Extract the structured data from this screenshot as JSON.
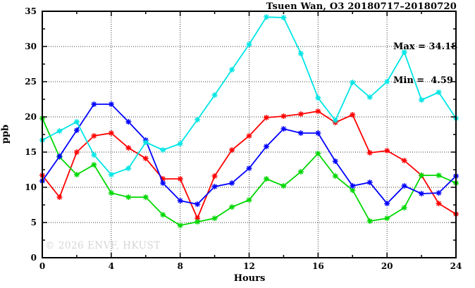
{
  "title": "Tsuen Wan, O3 20180717–20180720",
  "annotations": {
    "max_label": "Max = 34.18",
    "min_label": "Min =  4.59"
  },
  "watermark": "© 2026 ENVF, HKUST",
  "chart_data": {
    "type": "line",
    "title": "Tsuen Wan, O3 20180717–20180720",
    "xlabel": "Hours",
    "ylabel": "ppb",
    "xlim": [
      0,
      24
    ],
    "ylim": [
      0,
      35
    ],
    "x_ticks": [
      0,
      4,
      8,
      12,
      16,
      20,
      24
    ],
    "y_ticks": [
      0,
      5,
      10,
      15,
      20,
      25,
      30,
      35
    ],
    "x_minor_step": 2,
    "y_minor_step": 2.5,
    "grid": true,
    "legend_position": "none",
    "stats": {
      "max": 34.18,
      "min": 4.59
    },
    "x": [
      0,
      1,
      2,
      3,
      4,
      5,
      6,
      7,
      8,
      9,
      10,
      11,
      12,
      13,
      14,
      15,
      16,
      17,
      18,
      19,
      20,
      21,
      22,
      23,
      24
    ],
    "series": [
      {
        "name": "red-line",
        "color": "#ff0000",
        "values": [
          11.7,
          8.6,
          15.0,
          17.3,
          17.7,
          15.6,
          14.1,
          11.2,
          11.2,
          5.6,
          11.6,
          15.3,
          17.3,
          19.9,
          20.1,
          20.4,
          20.8,
          19.2,
          20.3,
          14.9,
          15.2,
          13.8,
          11.7,
          7.7,
          6.2
        ]
      },
      {
        "name": "green-line",
        "color": "#00d800",
        "values": [
          19.8,
          14.3,
          11.8,
          13.2,
          9.2,
          8.6,
          8.6,
          6.1,
          4.59,
          5.1,
          5.6,
          7.2,
          8.2,
          11.2,
          10.2,
          12.2,
          14.8,
          11.6,
          9.6,
          5.2,
          5.6,
          7.1,
          11.7,
          11.7,
          10.6
        ]
      },
      {
        "name": "blue-line",
        "color": "#0000ff",
        "values": [
          10.9,
          14.4,
          18.1,
          21.8,
          21.8,
          19.3,
          16.7,
          10.6,
          8.1,
          7.6,
          10.1,
          10.6,
          12.7,
          15.8,
          18.3,
          17.7,
          17.7,
          13.7,
          10.2,
          10.7,
          7.7,
          10.2,
          9.1,
          9.2,
          11.6
        ]
      },
      {
        "name": "cyan-line",
        "color": "#00e5e5",
        "values": [
          16.7,
          18.0,
          19.3,
          14.6,
          11.8,
          12.7,
          16.4,
          15.3,
          16.2,
          19.6,
          23.1,
          26.7,
          30.3,
          34.18,
          34.1,
          29.0,
          22.7,
          19.5,
          24.9,
          22.8,
          25.0,
          29.2,
          22.4,
          23.5,
          19.8
        ]
      }
    ]
  }
}
